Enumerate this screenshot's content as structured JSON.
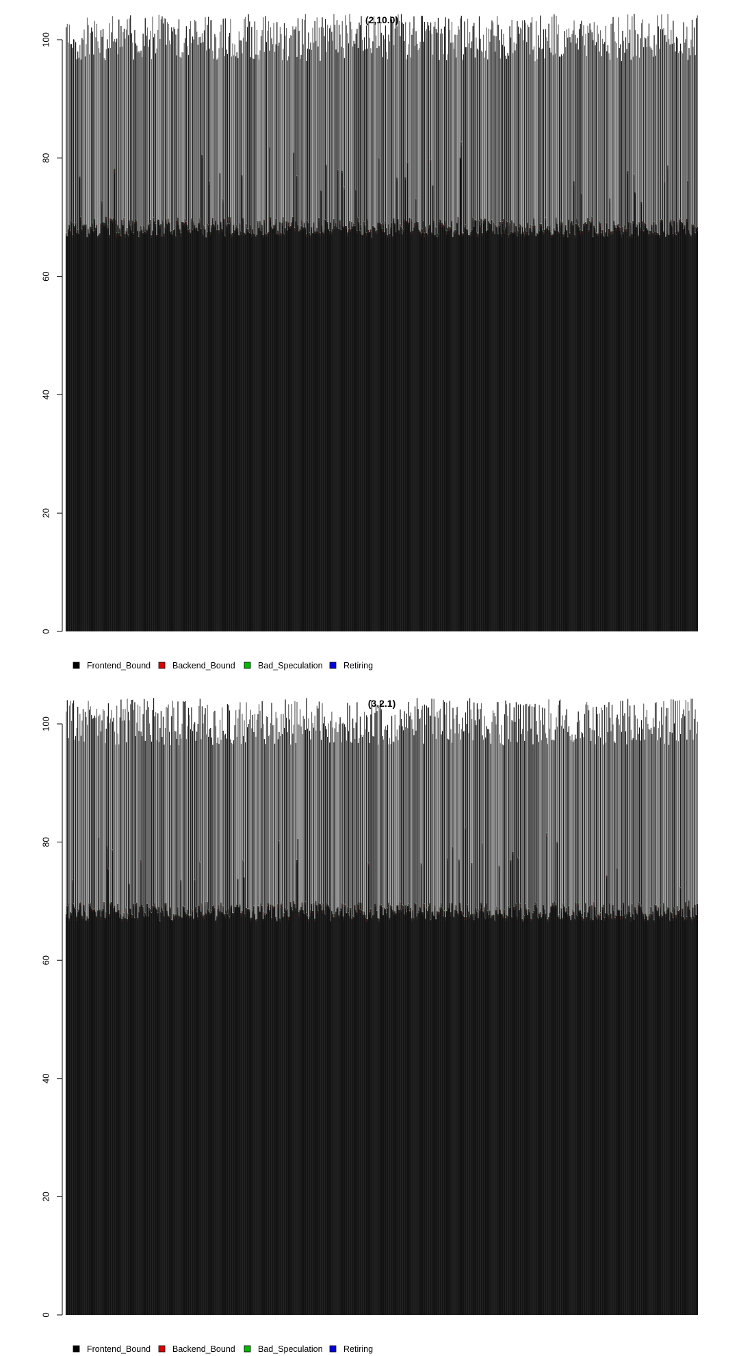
{
  "chart_data": [
    {
      "type": "bar",
      "stacked": true,
      "title": "(2,10.0)",
      "ylim": [
        0,
        105
      ],
      "yticks": [
        0,
        20,
        40,
        60,
        80,
        100
      ],
      "bar_count": 600,
      "series": [
        {
          "name": "Frontend_Bound",
          "color": "#000000",
          "typical_value": 68
        },
        {
          "name": "Backend_Bound",
          "color": "#DF0000",
          "typical_value": 0.5
        },
        {
          "name": "Bad_Speculation",
          "color": "#00BB00",
          "typical_value": 0.3
        },
        {
          "name": "Retiring",
          "color": "#0000DD",
          "typical_value": 30
        }
      ],
      "legend": [
        "Frontend_Bound",
        "Backend_Bound",
        "Bad_Speculation",
        "Retiring"
      ],
      "legend_position": "bottom-left",
      "grid": false
    },
    {
      "type": "bar",
      "stacked": true,
      "title": "(3,2.1)",
      "ylim": [
        0,
        105
      ],
      "yticks": [
        0,
        20,
        40,
        60,
        80,
        100
      ],
      "bar_count": 600,
      "series": [
        {
          "name": "Frontend_Bound",
          "color": "#000000",
          "typical_value": 68
        },
        {
          "name": "Backend_Bound",
          "color": "#DF0000",
          "typical_value": 0.5
        },
        {
          "name": "Bad_Speculation",
          "color": "#00BB00",
          "typical_value": 0.3
        },
        {
          "name": "Retiring",
          "color": "#0000DD",
          "typical_value": 30
        }
      ],
      "legend": [
        "Frontend_Bound",
        "Backend_Bound",
        "Bad_Speculation",
        "Retiring"
      ],
      "legend_position": "bottom-left",
      "grid": false
    }
  ]
}
